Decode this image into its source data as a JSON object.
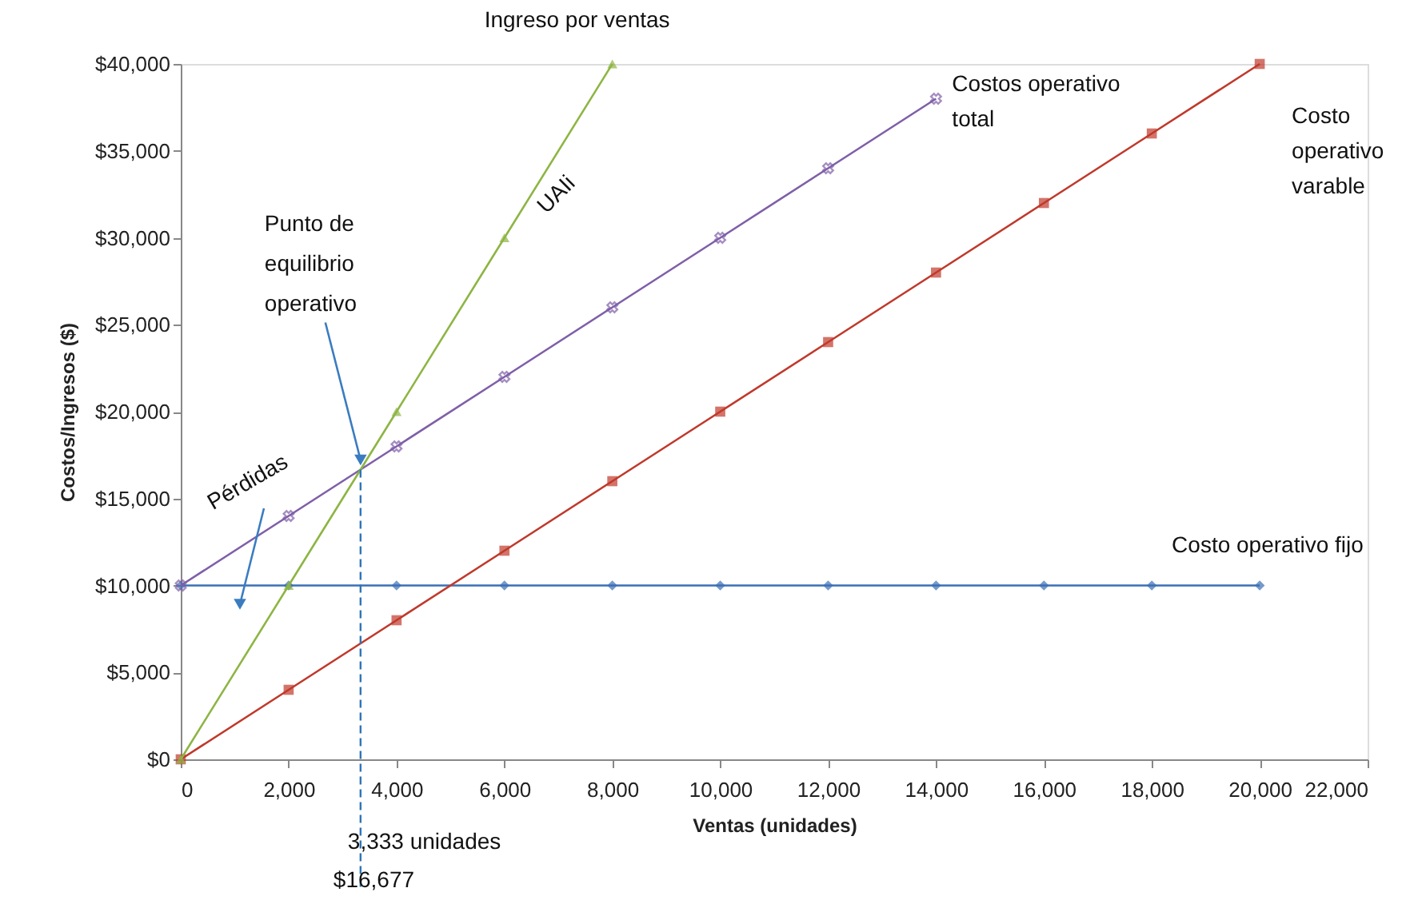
{
  "chart_data": {
    "type": "line",
    "xlabel": "Ventas (unidades)",
    "ylabel": "Costos/Ingresos ($)",
    "xlim": [
      0,
      22000
    ],
    "ylim": [
      0,
      40000
    ],
    "xticks": [
      0,
      {
        "value": 2000,
        "label": "2,000"
      },
      {
        "value": 4000,
        "label": "4,000"
      },
      {
        "value": 6000,
        "label": "6,000"
      },
      {
        "value": 8000,
        "label": "8,000"
      },
      {
        "value": 10000,
        "label": "10,000"
      },
      {
        "value": 12000,
        "label": "12,000"
      },
      {
        "value": 14000,
        "label": "14,000"
      },
      {
        "value": 16000,
        "label": "16,000"
      },
      {
        "value": 18000,
        "label": "18,000"
      },
      {
        "value": 20000,
        "label": "20,000"
      },
      {
        "value": 22000,
        "label": "22,000"
      }
    ],
    "yticks": [
      {
        "value": 0,
        "label": "$0"
      },
      {
        "value": 5000,
        "label": "$5,000"
      },
      {
        "value": 10000,
        "label": "$10,000"
      },
      {
        "value": 15000,
        "label": "$15,000"
      },
      {
        "value": 20000,
        "label": "$20,000"
      },
      {
        "value": 25000,
        "label": "$25,000"
      },
      {
        "value": 30000,
        "label": "$30,000"
      },
      {
        "value": 35000,
        "label": "$35,000"
      },
      {
        "value": 40000,
        "label": "$40,000"
      }
    ],
    "grid": false,
    "series": [
      {
        "name": "Costo operativo fijo",
        "color": "#3a6fb5",
        "marker": "diamond",
        "x": [
          0,
          2000,
          4000,
          6000,
          8000,
          10000,
          12000,
          14000,
          16000,
          18000,
          20000
        ],
        "values": [
          10000,
          10000,
          10000,
          10000,
          10000,
          10000,
          10000,
          10000,
          10000,
          10000,
          10000
        ]
      },
      {
        "name": "Costo operativo varable",
        "color": "#c0392b",
        "marker": "square",
        "x": [
          0,
          2000,
          4000,
          6000,
          8000,
          10000,
          12000,
          14000,
          16000,
          18000,
          20000
        ],
        "values": [
          0,
          4000,
          8000,
          12000,
          16000,
          20000,
          24000,
          28000,
          32000,
          36000,
          40000
        ]
      },
      {
        "name": "Costos operativo total",
        "color": "#7f5fa8",
        "marker": "cross",
        "x": [
          0,
          2000,
          4000,
          6000,
          8000,
          10000,
          12000,
          14000
        ],
        "values": [
          10000,
          14000,
          18000,
          22000,
          26000,
          30000,
          34000,
          38000
        ]
      },
      {
        "name": "Ingreso por ventas",
        "color": "#8db543",
        "marker": "triangle",
        "x": [
          0,
          2000,
          4000,
          6000,
          8000
        ],
        "values": [
          0,
          10000,
          20000,
          30000,
          40000
        ]
      }
    ],
    "ref_lines": [
      {
        "axis": "x",
        "value": 3333,
        "label": "3,333 unidades",
        "color": "#2e75b6",
        "line_style": "dashed"
      }
    ],
    "annotations": [
      {
        "text": "Punto de equilibrio operativo",
        "x": 3333,
        "y": 16667
      },
      "Pérdidas",
      "UAIi",
      "$16,677"
    ]
  }
}
